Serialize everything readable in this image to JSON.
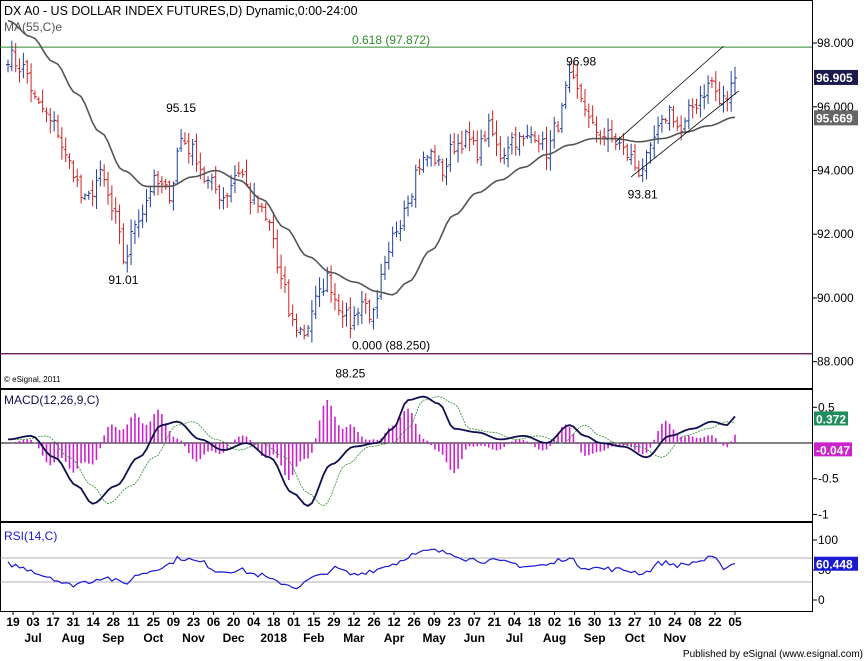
{
  "chart_data": {
    "type": "line",
    "title": "DX A0 - US DOLLAR INDEX FUTURES,D) Dynamic,0:00-24:00",
    "ma_label": "MA(55,C)e",
    "copyright": "© eSignal, 2011",
    "footer": "Published by eSignal (www.esignal.com)",
    "price_panel": {
      "ylim": [
        87.3,
        99.1
      ],
      "y_ticks": [
        "98.000",
        "96.000",
        "94.000",
        "92.000",
        "90.000",
        "88.000"
      ],
      "y_tick_values": [
        98,
        96,
        94,
        92,
        90,
        88
      ],
      "last_price": "96.905",
      "ma_last": "95.669",
      "fib_high_label": "0.618 (97.872)",
      "fib_low_label": "0.000 (88.250)",
      "fib_high": 97.872,
      "fib_low": 88.25,
      "annotations": [
        {
          "text": "96.98",
          "bar": 149,
          "value": 96.98
        },
        {
          "text": "95.15",
          "bar": 45,
          "value": 95.15
        },
        {
          "text": "91.01",
          "bar": 30,
          "value": 91.01
        },
        {
          "text": "93.81",
          "bar": 165,
          "value": 93.81
        },
        {
          "text": "88.25",
          "bar": 89,
          "value": 88.25
        }
      ],
      "channel_upper": [
        [
          158,
          94.9
        ],
        [
          186,
          97.9
        ]
      ],
      "channel_lower": [
        [
          162,
          93.8
        ],
        [
          190,
          96.5
        ]
      ],
      "colors": {
        "up": "#1f3d99",
        "down": "#cc2222",
        "ma": "#555555",
        "fib_line": "#2e8b2e",
        "low_line": "#550055"
      }
    },
    "macd_panel": {
      "label": "MACD(12,26,9,C)",
      "ylim": [
        -1.05,
        0.7
      ],
      "y_ticks": [
        "0.5",
        "-0.5",
        "-1"
      ],
      "y_tick_values": [
        0.5,
        -0.5,
        -1
      ],
      "macd_last": "0.372",
      "hist_last": "-0.047"
    },
    "rsi_panel": {
      "label": "RSI(14,C)",
      "ylim": [
        0,
        100
      ],
      "y_ticks": [
        "100",
        "50",
        "0"
      ],
      "y_tick_values": [
        100,
        50,
        0
      ],
      "levels": [
        70,
        30
      ],
      "rsi_last": "60.448"
    },
    "x_tick_labels": [
      "19",
      "03",
      "17",
      "31",
      "14",
      "28",
      "11",
      "25",
      "09",
      "23",
      "06",
      "20",
      "04",
      "18",
      "01",
      "15",
      "29",
      "12",
      "26",
      "12",
      "26",
      "09",
      "23",
      "07",
      "21",
      "04",
      "18",
      "02",
      "16",
      "30",
      "13",
      "27",
      "10",
      "24",
      "08",
      "22",
      "05"
    ],
    "month_labels": [
      {
        "text": "Jul",
        "tick": 1
      },
      {
        "text": "Aug",
        "tick": 3
      },
      {
        "text": "Sep",
        "tick": 5
      },
      {
        "text": "Oct",
        "tick": 7
      },
      {
        "text": "Nov",
        "tick": 9
      },
      {
        "text": "Dec",
        "tick": 11
      },
      {
        "text": "2018",
        "tick": 13
      },
      {
        "text": "Feb",
        "tick": 15
      },
      {
        "text": "Mar",
        "tick": 17
      },
      {
        "text": "Apr",
        "tick": 19
      },
      {
        "text": "May",
        "tick": 21
      },
      {
        "text": "Jun",
        "tick": 23
      },
      {
        "text": "Jul",
        "tick": 25
      },
      {
        "text": "Aug",
        "tick": 27
      },
      {
        "text": "Sep",
        "tick": 29
      },
      {
        "text": "Oct",
        "tick": 31
      },
      {
        "text": "Nov",
        "tick": 33
      }
    ],
    "close_anchors": [
      [
        0,
        97.6
      ],
      [
        4,
        97.2
      ],
      [
        8,
        96.0
      ],
      [
        12,
        95.4
      ],
      [
        16,
        94.2
      ],
      [
        20,
        93.0
      ],
      [
        24,
        93.8
      ],
      [
        28,
        92.5
      ],
      [
        30,
        91.2
      ],
      [
        34,
        92.6
      ],
      [
        38,
        93.6
      ],
      [
        42,
        93.3
      ],
      [
        45,
        95.0
      ],
      [
        48,
        94.6
      ],
      [
        52,
        93.6
      ],
      [
        56,
        93.2
      ],
      [
        60,
        94.0
      ],
      [
        64,
        93.0
      ],
      [
        68,
        92.3
      ],
      [
        71,
        90.5
      ],
      [
        74,
        89.2
      ],
      [
        77,
        88.9
      ],
      [
        80,
        89.9
      ],
      [
        83,
        90.6
      ],
      [
        86,
        89.8
      ],
      [
        89,
        89.2
      ],
      [
        92,
        89.9
      ],
      [
        95,
        89.4
      ],
      [
        98,
        90.9
      ],
      [
        101,
        92.2
      ],
      [
        104,
        93.2
      ],
      [
        107,
        94.2
      ],
      [
        110,
        94.5
      ],
      [
        113,
        94.0
      ],
      [
        116,
        94.8
      ],
      [
        119,
        95.0
      ],
      [
        122,
        94.6
      ],
      [
        125,
        95.3
      ],
      [
        128,
        94.5
      ],
      [
        131,
        95.0
      ],
      [
        134,
        94.9
      ],
      [
        137,
        95.2
      ],
      [
        140,
        94.6
      ],
      [
        143,
        95.5
      ],
      [
        146,
        96.8
      ],
      [
        149,
        96.3
      ],
      [
        152,
        95.3
      ],
      [
        155,
        95.1
      ],
      [
        158,
        94.9
      ],
      [
        161,
        94.5
      ],
      [
        164,
        94.0
      ],
      [
        166,
        94.3
      ],
      [
        169,
        95.2
      ],
      [
        172,
        95.9
      ],
      [
        175,
        95.2
      ],
      [
        178,
        96.0
      ],
      [
        181,
        96.5
      ],
      [
        183,
        96.8
      ],
      [
        185,
        96.1
      ],
      [
        187,
        96.3
      ],
      [
        189,
        96.9
      ]
    ],
    "ma_anchors": [
      [
        0,
        98.7
      ],
      [
        6,
        98.2
      ],
      [
        12,
        97.4
      ],
      [
        18,
        96.4
      ],
      [
        24,
        95.2
      ],
      [
        30,
        94.0
      ],
      [
        36,
        93.5
      ],
      [
        42,
        93.5
      ],
      [
        48,
        93.8
      ],
      [
        54,
        94.0
      ],
      [
        60,
        93.7
      ],
      [
        66,
        93.1
      ],
      [
        72,
        92.2
      ],
      [
        78,
        91.3
      ],
      [
        84,
        90.8
      ],
      [
        90,
        90.5
      ],
      [
        96,
        90.2
      ],
      [
        100,
        90.1
      ],
      [
        104,
        90.5
      ],
      [
        110,
        91.5
      ],
      [
        116,
        92.6
      ],
      [
        122,
        93.3
      ],
      [
        128,
        93.7
      ],
      [
        134,
        94.1
      ],
      [
        140,
        94.5
      ],
      [
        146,
        94.8
      ],
      [
        152,
        95.0
      ],
      [
        158,
        95.0
      ],
      [
        164,
        94.9
      ],
      [
        170,
        95.0
      ],
      [
        176,
        95.2
      ],
      [
        182,
        95.4
      ],
      [
        189,
        95.67
      ]
    ],
    "rsi_anchors": [
      [
        0,
        60
      ],
      [
        5,
        52
      ],
      [
        10,
        40
      ],
      [
        16,
        25
      ],
      [
        20,
        30
      ],
      [
        25,
        38
      ],
      [
        30,
        28
      ],
      [
        35,
        45
      ],
      [
        40,
        55
      ],
      [
        45,
        70
      ],
      [
        50,
        63
      ],
      [
        55,
        48
      ],
      [
        60,
        50
      ],
      [
        65,
        42
      ],
      [
        70,
        30
      ],
      [
        75,
        22
      ],
      [
        80,
        38
      ],
      [
        85,
        52
      ],
      [
        90,
        42
      ],
      [
        95,
        50
      ],
      [
        100,
        60
      ],
      [
        105,
        75
      ],
      [
        110,
        82
      ],
      [
        115,
        78
      ],
      [
        120,
        68
      ],
      [
        125,
        65
      ],
      [
        130,
        62
      ],
      [
        135,
        56
      ],
      [
        140,
        58
      ],
      [
        145,
        70
      ],
      [
        150,
        55
      ],
      [
        155,
        52
      ],
      [
        160,
        50
      ],
      [
        165,
        45
      ],
      [
        170,
        62
      ],
      [
        175,
        58
      ],
      [
        180,
        65
      ],
      [
        183,
        70
      ],
      [
        186,
        55
      ],
      [
        189,
        60.4
      ]
    ],
    "macd_anchors": [
      [
        0,
        0.05
      ],
      [
        6,
        0.1
      ],
      [
        12,
        -0.2
      ],
      [
        18,
        -0.6
      ],
      [
        22,
        -0.85
      ],
      [
        28,
        -0.6
      ],
      [
        34,
        -0.2
      ],
      [
        40,
        0.25
      ],
      [
        44,
        0.3
      ],
      [
        50,
        0.05
      ],
      [
        56,
        -0.1
      ],
      [
        62,
        0.0
      ],
      [
        68,
        -0.2
      ],
      [
        74,
        -0.7
      ],
      [
        78,
        -0.88
      ],
      [
        84,
        -0.3
      ],
      [
        90,
        -0.05
      ],
      [
        96,
        0.0
      ],
      [
        100,
        0.2
      ],
      [
        104,
        0.6
      ],
      [
        108,
        0.65
      ],
      [
        112,
        0.55
      ],
      [
        116,
        0.2
      ],
      [
        122,
        0.15
      ],
      [
        128,
        0.05
      ],
      [
        134,
        0.1
      ],
      [
        140,
        0.0
      ],
      [
        146,
        0.25
      ],
      [
        150,
        0.1
      ],
      [
        154,
        0.0
      ],
      [
        160,
        -0.05
      ],
      [
        166,
        -0.2
      ],
      [
        172,
        0.1
      ],
      [
        178,
        0.2
      ],
      [
        183,
        0.3
      ],
      [
        187,
        0.25
      ],
      [
        189,
        0.372
      ]
    ],
    "bar_count": 190
  }
}
